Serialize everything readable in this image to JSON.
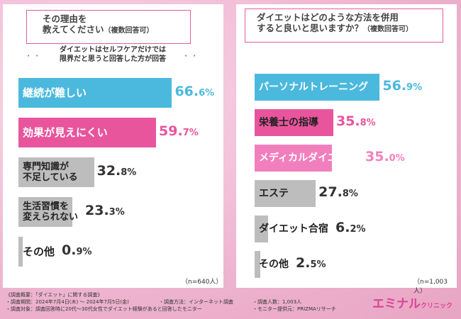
{
  "left": {
    "question_line1": "その理由を",
    "question_line2": "教えてください",
    "question_suffix": "（複数回答可）",
    "note_line1": "ダイエットはセルフケアだけでは",
    "note_line2": "限界だと思うと回答した方が回答",
    "n_label": "（n=640人）"
  },
  "right": {
    "question_line1": "ダイエットはどのような方法を併用",
    "question_line2": "すると良いと思いますか？",
    "question_suffix": "（複数回答可）",
    "n_label": "（n=1,003人）"
  },
  "chart_data": [
    {
      "type": "bar",
      "orientation": "horizontal",
      "unit": "%",
      "xlim": [
        0,
        100
      ],
      "categories": [
        "継続が難しい",
        "効果が見えにくい",
        "専門知識が不足している",
        "生活習慣を変えられない",
        "その他"
      ],
      "category_lines": [
        [
          "継続が難しい"
        ],
        [
          "効果が見えにくい"
        ],
        [
          "専門知識が",
          "不足している"
        ],
        [
          "生活習慣を",
          "変えられない"
        ],
        [
          "その他"
        ]
      ],
      "values": [
        66.6,
        59.7,
        32.8,
        23.3,
        0.9
      ],
      "colors": [
        "#4bb9dd",
        "#e8559d",
        "#bdbdbd",
        "#bdbdbd",
        "#bdbdbd"
      ],
      "value_colors": [
        "#4bb9dd",
        "#e8559d",
        "#333333",
        "#333333",
        "#333333"
      ],
      "label_colors": [
        "#ffffff",
        "#ffffff",
        "#222222",
        "#222222",
        "#222222"
      ],
      "n": "n=640人"
    },
    {
      "type": "bar",
      "orientation": "horizontal",
      "unit": "%",
      "xlim": [
        0,
        100
      ],
      "categories": [
        "パーソナルトレーニング",
        "栄養士の指導",
        "メディカルダイエット",
        "エステ",
        "ダイエット合宿",
        "その他"
      ],
      "category_lines": [
        [
          "パーソナルトレーニング"
        ],
        [
          "栄養士の指導"
        ],
        [
          "メディカルダイエット"
        ],
        [
          "エステ"
        ],
        [
          "ダイエット合宿"
        ],
        [
          "その他"
        ]
      ],
      "values": [
        56.9,
        35.8,
        35.0,
        27.8,
        6.2,
        2.5
      ],
      "colors": [
        "#4bb9dd",
        "#e8559d",
        "#f27fbd",
        "#bdbdbd",
        "#bdbdbd",
        "#bdbdbd"
      ],
      "value_colors": [
        "#4bb9dd",
        "#e8559d",
        "#f27fbd",
        "#333333",
        "#333333",
        "#333333"
      ],
      "label_colors": [
        "#ffffff",
        "#222222",
        "#ffffff",
        "#222222",
        "#222222",
        "#222222"
      ],
      "n": "n=1,003人"
    }
  ],
  "footer": {
    "line1": "《調査概要：「ダイエット」に関する調査》",
    "line2a": "・調査期間：2024年7月4日(木) ～ 2024年7月5日(金)",
    "line2b": "・調査方法：インターネット調査",
    "line2c": "・調査人数：1,003人",
    "line3a": "・調査対象：調査回答時に20代～30代女性でダイエット経験があると回答したモニター",
    "line3b": "・モニター提供元：PRIZMAリサーチ",
    "brand_main": "エミナル",
    "brand_sub": "クリニック"
  }
}
